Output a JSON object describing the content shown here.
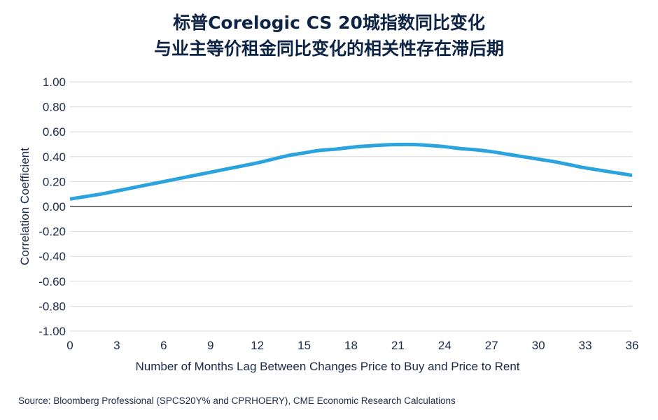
{
  "title_line1": "标普Corelogic CS 20城指数同比变化",
  "title_line2": "与业主等价租金同比变化的相关性存在滞后期",
  "source": "Source: Bloomberg Professional (SPCS20Y% and CPRHOERY), CME Economic Research Calculations",
  "colors": {
    "series": "#2ba3dc",
    "zero_line": "#4a4a4a",
    "grid": "#d9d9d9",
    "text": "#1a2b49"
  },
  "chart_data": {
    "type": "line",
    "title": "标普Corelogic CS 20城指数同比变化 与业主等价租金同比变化的相关性存在滞后期",
    "xlabel": "Number of Months Lag Between Changes Price to Buy and Price to Rent",
    "ylabel": "Correlation Coefficient",
    "xlim": [
      0,
      36
    ],
    "ylim": [
      -1.0,
      1.0
    ],
    "x_ticks": [
      "0",
      "3",
      "6",
      "9",
      "12",
      "15",
      "18",
      "21",
      "24",
      "27",
      "30",
      "33",
      "36"
    ],
    "y_ticks": [
      "1.00",
      "0.80",
      "0.60",
      "0.40",
      "0.20",
      "0.00",
      "-0.20",
      "-0.40",
      "-0.60",
      "-0.80",
      "-1.00"
    ],
    "grid": true,
    "legend": "none",
    "series": [
      {
        "x": [
          0,
          1,
          2,
          3,
          4,
          5,
          6,
          7,
          8,
          9,
          10,
          11,
          12,
          13,
          14,
          15,
          16,
          17,
          18,
          19,
          20,
          21,
          22,
          23,
          24,
          25,
          26,
          27,
          28,
          29,
          30,
          31,
          32,
          33,
          34,
          35,
          36
        ],
        "values": [
          0.06,
          0.08,
          0.1,
          0.125,
          0.15,
          0.175,
          0.2,
          0.225,
          0.25,
          0.275,
          0.3,
          0.325,
          0.35,
          0.38,
          0.41,
          0.43,
          0.45,
          0.46,
          0.475,
          0.485,
          0.493,
          0.497,
          0.497,
          0.49,
          0.48,
          0.465,
          0.455,
          0.44,
          0.42,
          0.4,
          0.38,
          0.36,
          0.335,
          0.31,
          0.29,
          0.27,
          0.25
        ]
      }
    ]
  }
}
